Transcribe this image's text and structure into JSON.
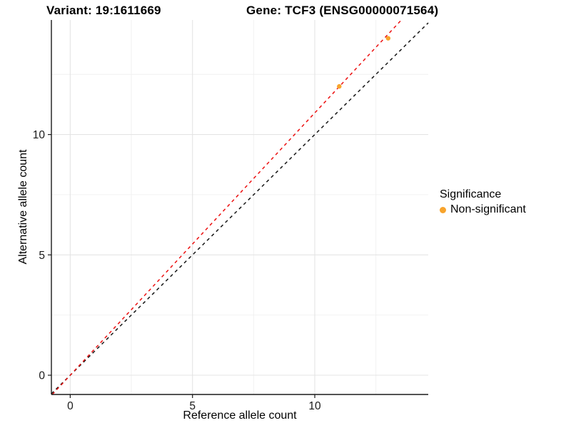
{
  "chart_data": {
    "type": "scatter",
    "title_left": "Variant: 19:1611669",
    "title_right": "Gene: TCF3 (ENSG00000071564)",
    "xlabel": "Reference allele count",
    "ylabel": "Alternative allele count",
    "xlim": [
      -0.77,
      14.64
    ],
    "ylim": [
      -0.8,
      14.76
    ],
    "x_ticks": [
      0,
      5,
      10
    ],
    "x_tick_labels": [
      "0",
      "5",
      "10"
    ],
    "y_ticks": [
      0,
      5,
      10
    ],
    "y_tick_labels": [
      "0",
      "5",
      "10"
    ],
    "x_minor_ticks": [
      2.5,
      7.5,
      12.5
    ],
    "y_minor_ticks": [
      2.5,
      7.5,
      12.5
    ],
    "grid": {
      "major_color": "#e4e4e4",
      "minor_color": "#f0f0f0",
      "grid_on": true
    },
    "axis_color": "#1a1a1a",
    "tick_label_color": "#1a1a1a",
    "points": [
      {
        "x": 11,
        "y": 12
      },
      {
        "x": 13,
        "y": 14
      }
    ],
    "point_color": "#F8A42C",
    "lines": [
      {
        "name": "identity",
        "slope": 1.0,
        "intercept": 0,
        "color": "#161616",
        "style": "dashed"
      },
      {
        "name": "fitted",
        "slope": 1.09,
        "intercept": 0,
        "color": "#EC1010",
        "style": "dashed"
      }
    ],
    "legend": {
      "title": "Significance",
      "position": "right",
      "items": [
        {
          "label": "Non-significant",
          "color": "#F8A42C"
        }
      ]
    }
  }
}
